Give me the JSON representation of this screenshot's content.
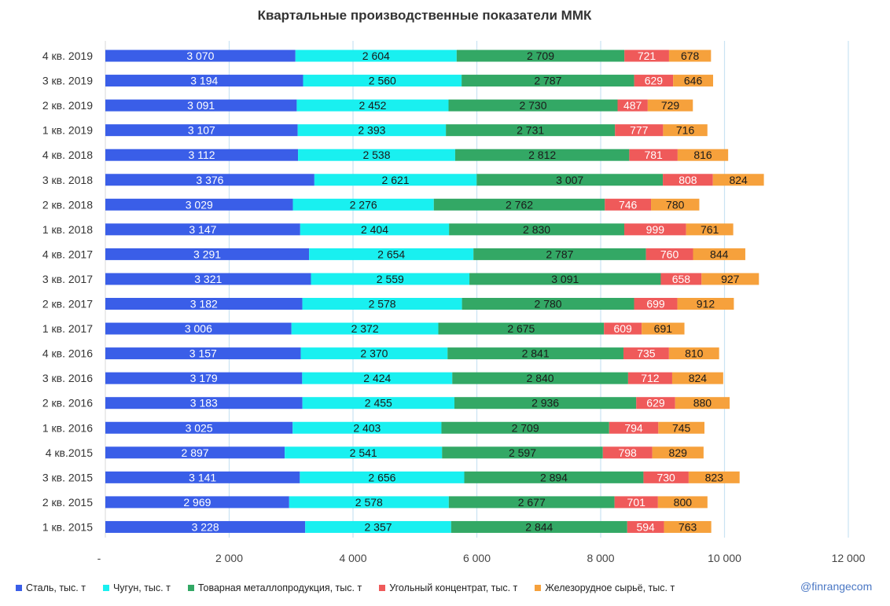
{
  "watermark": "@finrangecom",
  "chart_data": {
    "type": "bar",
    "orientation": "horizontal",
    "stacked": true,
    "title": "Квартальные производственные показатели ММК",
    "categories": [
      "4 кв. 2019",
      "3 кв. 2019",
      "2 кв. 2019",
      "1 кв. 2019",
      "4 кв. 2018",
      "3 кв. 2018",
      "2 кв. 2018",
      "1 кв. 2018",
      "4 кв. 2017",
      "3 кв. 2017",
      "2 кв. 2017",
      "1 кв. 2017",
      "4 кв. 2016",
      "3 кв. 2016",
      "2 кв. 2016",
      "1 кв. 2016",
      "4 кв.2015",
      "3 кв. 2015",
      "2 кв. 2015",
      "1 кв. 2015"
    ],
    "series": [
      {
        "name": "Сталь, тыс. т",
        "color": "#3a5ee8",
        "values": [
          3070,
          3194,
          3091,
          3107,
          3112,
          3376,
          3029,
          3147,
          3291,
          3321,
          3182,
          3006,
          3157,
          3179,
          3183,
          3025,
          2897,
          3141,
          2969,
          3228
        ],
        "labels": [
          "3 070",
          "3 194",
          "3 091",
          "3 107",
          "3 112",
          "3 376",
          "3 029",
          "3 147",
          "3 291",
          "3 321",
          "3 182",
          "3 006",
          "3 157",
          "3 179",
          "3 183",
          "3 025",
          "2 897",
          "3 141",
          "2 969",
          "3 228"
        ]
      },
      {
        "name": "Чугун, тыс. т",
        "color": "#19f0f0",
        "values": [
          2604,
          2560,
          2452,
          2393,
          2538,
          2621,
          2276,
          2404,
          2654,
          2559,
          2578,
          2372,
          2370,
          2424,
          2455,
          2403,
          2541,
          2656,
          2578,
          2357
        ],
        "labels": [
          "2 604",
          "2 560",
          "2 452",
          "2 393",
          "2 538",
          "2 621",
          "2 276",
          "2 404",
          "2 654",
          "2 559",
          "2 578",
          "2 372",
          "2 370",
          "2 424",
          "2 455",
          "2 403",
          "2 541",
          "2 656",
          "2 578",
          "2 357"
        ]
      },
      {
        "name": "Товарная металлопродукция, тыс. т",
        "color": "#33a865",
        "values": [
          2709,
          2787,
          2730,
          2731,
          2812,
          3007,
          2762,
          2830,
          2787,
          3091,
          2780,
          2675,
          2841,
          2840,
          2936,
          2709,
          2597,
          2894,
          2677,
          2844
        ],
        "labels": [
          "2 709",
          "2 787",
          "2 730",
          "2 731",
          "2 812",
          "3 007",
          "2 762",
          "2 830",
          "2 787",
          "3 091",
          "2 780",
          "2 675",
          "2 841",
          "2 840",
          "2 936",
          "2 709",
          "2 597",
          "2 894",
          "2 677",
          "2 844"
        ]
      },
      {
        "name": "Угольный концентрат, тыс. т",
        "color": "#ef5a5a",
        "values": [
          721,
          629,
          487,
          777,
          781,
          808,
          746,
          999,
          760,
          658,
          699,
          609,
          735,
          712,
          629,
          794,
          798,
          730,
          701,
          594
        ],
        "labels": [
          "721",
          "629",
          "487",
          "777",
          "781",
          "808",
          "746",
          "999",
          "760",
          "658",
          "699",
          "609",
          "735",
          "712",
          "629",
          "794",
          "798",
          "730",
          "701",
          "594"
        ]
      },
      {
        "name": "Железорудное сырьё, тыс. т",
        "color": "#f6a13c",
        "values": [
          678,
          646,
          729,
          716,
          816,
          824,
          780,
          761,
          844,
          927,
          912,
          691,
          810,
          824,
          880,
          745,
          829,
          823,
          800,
          763
        ],
        "labels": [
          "678",
          "646",
          "729",
          "716",
          "816",
          "824",
          "780",
          "761",
          "844",
          "927",
          "912",
          "691",
          "810",
          "824",
          "880",
          "745",
          "829",
          "823",
          "800",
          "763"
        ]
      }
    ],
    "xlim": [
      0,
      12000
    ],
    "xticks": [
      0,
      2000,
      4000,
      6000,
      8000,
      10000,
      12000
    ],
    "xtick_labels": [
      "-",
      "2 000",
      "4 000",
      "6 000",
      "8 000",
      "10 000",
      "12 000"
    ],
    "grid": true,
    "legend_position": "bottom"
  }
}
